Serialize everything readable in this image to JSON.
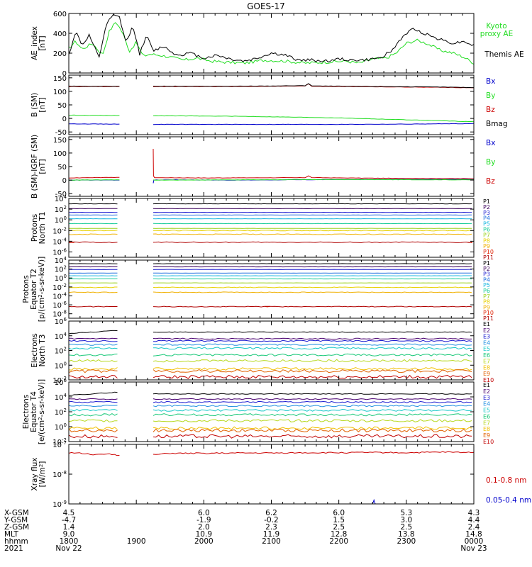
{
  "title": "GOES-17",
  "colors": {
    "black": "#000000",
    "green": "#22dd22",
    "red": "#cc0000",
    "blue": "#0000cc",
    "bz_red": "#dd0000",
    "pchannels": [
      "#000000",
      "#3a005a",
      "#1a1ad0",
      "#1f6fe0",
      "#1ab7e0",
      "#1acc9a",
      "#9ad21e",
      "#e8d000",
      "#f0b000",
      "#e02000",
      "#b00000"
    ],
    "echannels": [
      "#000000",
      "#4a0070",
      "#1a1ad0",
      "#1f8fe0",
      "#18c8c8",
      "#18c878",
      "#b8d820",
      "#f0c000",
      "#e06000",
      "#c00000"
    ]
  },
  "xaxis": {
    "rows": [
      {
        "label": "X-GSM",
        "values": [
          "4.5",
          "",
          "6.0",
          "6.2",
          "6.0",
          "5.3",
          "4.3"
        ]
      },
      {
        "label": "Y-GSM",
        "values": [
          "-4.7",
          "",
          "-1.9",
          "-0.2",
          "1.5",
          "3.0",
          "4.4"
        ]
      },
      {
        "label": "Z-GSM",
        "values": [
          "1.4",
          "",
          "2.0",
          "2.3",
          "2.5",
          "2.5",
          "2.4"
        ]
      },
      {
        "label": "MLT",
        "values": [
          "9.0",
          "",
          "10.9",
          "11.9",
          "12.8",
          "13.8",
          "14.8"
        ]
      },
      {
        "label": "hhmm",
        "values": [
          "1800",
          "1900",
          "2000",
          "2100",
          "2200",
          "2300",
          "0000"
        ]
      },
      {
        "label": "2021",
        "values": [
          "Nov 22",
          "",
          "",
          "",
          "",
          "",
          "Nov 23"
        ]
      }
    ],
    "hours": [
      18,
      19,
      20,
      21,
      22,
      23,
      24
    ]
  },
  "chart_data": [
    {
      "type": "line",
      "ylabel": "AE_index [nT]",
      "ylim": [
        0,
        600
      ],
      "yticks": [
        "0",
        "200",
        "400",
        "600"
      ],
      "series": [
        {
          "name": "Kyoto proxy AE",
          "legend_lines": [
            "Kyoto",
            "proxy AE"
          ],
          "color": "green",
          "x": [
            18.0,
            18.1,
            18.2,
            18.35,
            18.5,
            18.6,
            18.7,
            18.8,
            18.9,
            19.0,
            19.1,
            19.2,
            19.35,
            19.5,
            19.7,
            19.9,
            20.1,
            20.3,
            20.6,
            20.9,
            21.2,
            21.5,
            21.8,
            22.1,
            22.3,
            22.5,
            22.7,
            22.85,
            23.0,
            23.15,
            23.3,
            23.5,
            23.7,
            23.85,
            24.0
          ],
          "y": [
            250,
            320,
            240,
            300,
            180,
            420,
            520,
            400,
            220,
            310,
            170,
            190,
            180,
            160,
            130,
            150,
            120,
            110,
            100,
            130,
            120,
            100,
            110,
            120,
            100,
            140,
            150,
            200,
            300,
            330,
            300,
            230,
            200,
            160,
            100
          ]
        },
        {
          "name": "Themis AE",
          "color": "black",
          "x": [
            18.0,
            18.1,
            18.2,
            18.3,
            18.45,
            18.55,
            18.65,
            18.75,
            18.85,
            18.95,
            19.05,
            19.15,
            19.25,
            19.4,
            19.6,
            19.8,
            20.0,
            20.2,
            20.4,
            20.6,
            20.8,
            21.0,
            21.2,
            21.4,
            21.6,
            21.8,
            22.0,
            22.2,
            22.4,
            22.6,
            22.8,
            22.9,
            23.0,
            23.1,
            23.2,
            23.3,
            23.5,
            23.7,
            23.85,
            24.0
          ],
          "y": [
            180,
            420,
            280,
            380,
            150,
            480,
            580,
            560,
            300,
            480,
            190,
            380,
            220,
            270,
            180,
            200,
            150,
            180,
            140,
            120,
            150,
            200,
            180,
            130,
            130,
            120,
            140,
            130,
            130,
            150,
            230,
            330,
            400,
            440,
            420,
            390,
            340,
            300,
            320,
            280
          ]
        }
      ]
    },
    {
      "type": "line",
      "ylabel": "B (SM) [nT]",
      "ylim": [
        -60,
        160
      ],
      "yticks": [
        "-50",
        "0",
        "50",
        "100",
        "150"
      ],
      "gap": [
        18.75,
        19.25
      ],
      "series": [
        {
          "name": "Bx",
          "color": "blue",
          "x": [
            18.0,
            18.75,
            19.25,
            20.5,
            22.0,
            23.0,
            24.0
          ],
          "y": [
            -20,
            -21,
            -22,
            -22,
            -22,
            -21,
            -19
          ]
        },
        {
          "name": "By",
          "color": "green",
          "x": [
            18.0,
            18.75,
            19.25,
            20.5,
            22.0,
            23.0,
            24.0
          ],
          "y": [
            12,
            11,
            10,
            8,
            2,
            -5,
            -12
          ]
        },
        {
          "name": "Bz",
          "color": "red",
          "x": [
            18.0,
            18.75,
            19.25,
            20.5,
            21.5,
            21.55,
            21.6,
            22.5,
            23.5,
            24.0
          ],
          "y": [
            118,
            118,
            118,
            118,
            120,
            128,
            119,
            117,
            115,
            113
          ]
        },
        {
          "name": "Bmag",
          "color": "black",
          "x": [
            18.0,
            18.75,
            19.25,
            20.5,
            21.5,
            21.55,
            21.6,
            22.5,
            23.5,
            24.0
          ],
          "y": [
            119,
            119,
            119,
            119,
            121,
            129,
            120,
            118,
            116,
            114
          ]
        }
      ]
    },
    {
      "type": "line",
      "ylabel": "B (SM)-IGRF (SM) [nT]",
      "ylim": [
        -60,
        160
      ],
      "yticks": [
        "-50",
        "0",
        "50",
        "100",
        "150"
      ],
      "gap": [
        18.75,
        19.25
      ],
      "series": [
        {
          "name": "Bx",
          "color": "blue",
          "x": [
            18.0,
            18.75,
            19.25,
            19.26,
            19.5,
            20.5,
            22.0,
            24.0
          ],
          "y": [
            0,
            0,
            -12,
            0,
            1,
            0,
            2,
            3
          ]
        },
        {
          "name": "By",
          "color": "green",
          "x": [
            18.0,
            18.75,
            19.25,
            20.5,
            22.0,
            24.0
          ],
          "y": [
            0,
            1,
            0,
            1,
            2,
            1
          ]
        },
        {
          "name": "Bz",
          "color": "red",
          "x": [
            18.0,
            18.75,
            19.25,
            19.255,
            19.27,
            20.0,
            21.5,
            21.55,
            21.6,
            22.5,
            24.0
          ],
          "y": [
            8,
            10,
            115,
            15,
            9,
            8,
            9,
            16,
            9,
            7,
            5
          ]
        }
      ]
    },
    {
      "type": "line",
      "ylabel": "Protons North T1",
      "yscale": "log",
      "ylim_exp": [
        -7,
        4
      ],
      "yticks": [
        "10^4",
        "10^2",
        "10^0",
        "10^-2",
        "10^-4",
        "10^-6"
      ],
      "gap": [
        18.75,
        19.25
      ],
      "channels": [
        "P1",
        "P2",
        "P3",
        "P4",
        "P5",
        "P6",
        "P7",
        "P8",
        "P9",
        "P10",
        "P11"
      ],
      "log_levels": [
        3.0,
        2.1,
        1.4,
        0.9,
        0.2,
        -0.7,
        -1.6,
        -2.0,
        -2.7,
        -4.2,
        -4.2
      ],
      "partial": {
        "P10": [
          [
            18.0,
            18.1
          ],
          [
            23.9,
            24.0
          ]
        ]
      }
    },
    {
      "type": "line",
      "ylabel": "Protons Equator T2 [p/(cm^2-s-sr-keV)]",
      "yscale": "log",
      "ylim_exp": [
        -9,
        4
      ],
      "yticks": [
        "10^4",
        "10^2",
        "10^0",
        "10^-2",
        "10^-4",
        "10^-6",
        "10^-8"
      ],
      "gap": [
        18.75,
        19.25
      ],
      "channels": [
        "P1",
        "P2",
        "P3",
        "P4",
        "P5",
        "P6",
        "P7",
        "P8",
        "P9",
        "P10",
        "P11"
      ],
      "log_levels": [
        3.2,
        2.5,
        1.9,
        1.1,
        0.5,
        -0.2,
        -1.1,
        -2.1,
        -3.2,
        -6.4,
        -6.4
      ],
      "partial": {
        "P10": [
          [
            20.9,
            21.0
          ]
        ]
      }
    },
    {
      "type": "line",
      "ylabel": "Electrons North T3",
      "yscale": "log",
      "ylim_exp": [
        -2,
        6
      ],
      "yticks": [
        "10^6",
        "10^4",
        "10^2",
        "10^0",
        "10^-2"
      ],
      "gap": [
        18.75,
        19.25
      ],
      "channels": [
        "E1",
        "E2",
        "E3",
        "E4",
        "E5",
        "E6",
        "E7",
        "E8",
        "E9",
        "E10"
      ],
      "log_levels": [
        4.5,
        3.6,
        3.3,
        2.8,
        2.3,
        1.4,
        0.6,
        -0.5,
        -0.8,
        -1.6
      ]
    },
    {
      "type": "line",
      "ylabel": "Electrons Equator T4 [e/(cm^2-s-sr-keV)]",
      "yscale": "log",
      "ylim_exp": [
        -2,
        6
      ],
      "yticks": [
        "10^6",
        "10^4",
        "10^2",
        "10^0",
        "10^-2"
      ],
      "gap": [
        18.75,
        19.25
      ],
      "channels": [
        "E1",
        "E2",
        "E3",
        "E4",
        "E5",
        "E6",
        "E7",
        "E8",
        "E9",
        "E10"
      ],
      "log_levels": [
        4.4,
        3.7,
        3.3,
        2.8,
        2.2,
        1.6,
        0.8,
        -0.2,
        -0.5,
        -1.3
      ]
    },
    {
      "type": "line",
      "ylabel": "Xray flux [W/m^2]",
      "yscale": "log",
      "ylim_exp": [
        -9,
        -7
      ],
      "yticks": [
        "10^-7",
        "10^-8",
        "10^-9"
      ],
      "gap": [
        18.75,
        19.25
      ],
      "series": [
        {
          "name": "0.1-0.8 nm",
          "color": "red",
          "x": [
            18.0,
            18.2,
            18.4,
            18.6,
            18.75,
            19.25,
            19.5,
            20.0,
            20.5,
            21.0,
            21.5,
            22.0,
            22.5,
            23.0,
            23.5,
            24.0
          ],
          "log_y": [
            -7.28,
            -7.3,
            -7.35,
            -7.32,
            -7.37,
            -7.35,
            -7.3,
            -7.3,
            -7.29,
            -7.29,
            -7.28,
            -7.28,
            -7.27,
            -7.28,
            -7.26,
            -7.27
          ]
        },
        {
          "name": "0.05-0.4 nm",
          "color": "blue",
          "x": [
            22.5,
            22.52,
            22.54
          ],
          "log_y": [
            -9.0,
            -8.88,
            -9.0
          ]
        }
      ]
    }
  ]
}
